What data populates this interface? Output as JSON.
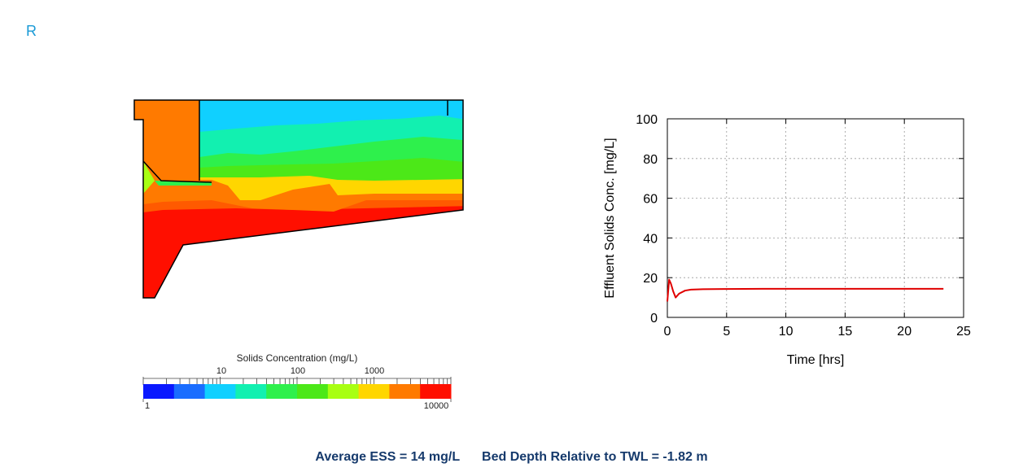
{
  "header": {
    "letter": "R",
    "letter_color": "#1a9ad6"
  },
  "colorbar": {
    "title": "Solids Concentration (mg/L)",
    "top_labels": [
      "10",
      "100",
      "1000"
    ],
    "bottom_labels": [
      "1",
      "10000"
    ],
    "colors": [
      "#0a18ff",
      "#1a6dff",
      "#10d0ff",
      "#12f0b0",
      "#2ef04c",
      "#4ce818",
      "#a8ff12",
      "#ffd600",
      "#ff7a00",
      "#ff0f00"
    ]
  },
  "chart_data": {
    "type": "line",
    "title": "",
    "xlabel": "Time [hrs]",
    "ylabel": "Effluent Solids Conc. [mg/L]",
    "xlim": [
      0,
      25
    ],
    "ylim": [
      0,
      100
    ],
    "xticks": [
      0,
      5,
      10,
      15,
      20,
      25
    ],
    "yticks": [
      0,
      20,
      40,
      60,
      80,
      100
    ],
    "grid": true,
    "series": [
      {
        "color": "#e00000",
        "x": [
          0,
          0.15,
          0.3,
          0.5,
          0.7,
          1.0,
          1.5,
          2,
          3,
          5,
          8,
          10,
          12,
          15,
          18,
          20,
          23.3
        ],
        "y": [
          8,
          19,
          17,
          13,
          10,
          12,
          13.5,
          14,
          14.2,
          14.3,
          14.4,
          14.4,
          14.4,
          14.4,
          14.4,
          14.4,
          14.4
        ]
      }
    ]
  },
  "footer": {
    "ess": "Average ESS = 14 mg/L",
    "bed_depth": "Bed Depth Relative to TWL = -1.82 m",
    "text_color": "#163a6c"
  }
}
